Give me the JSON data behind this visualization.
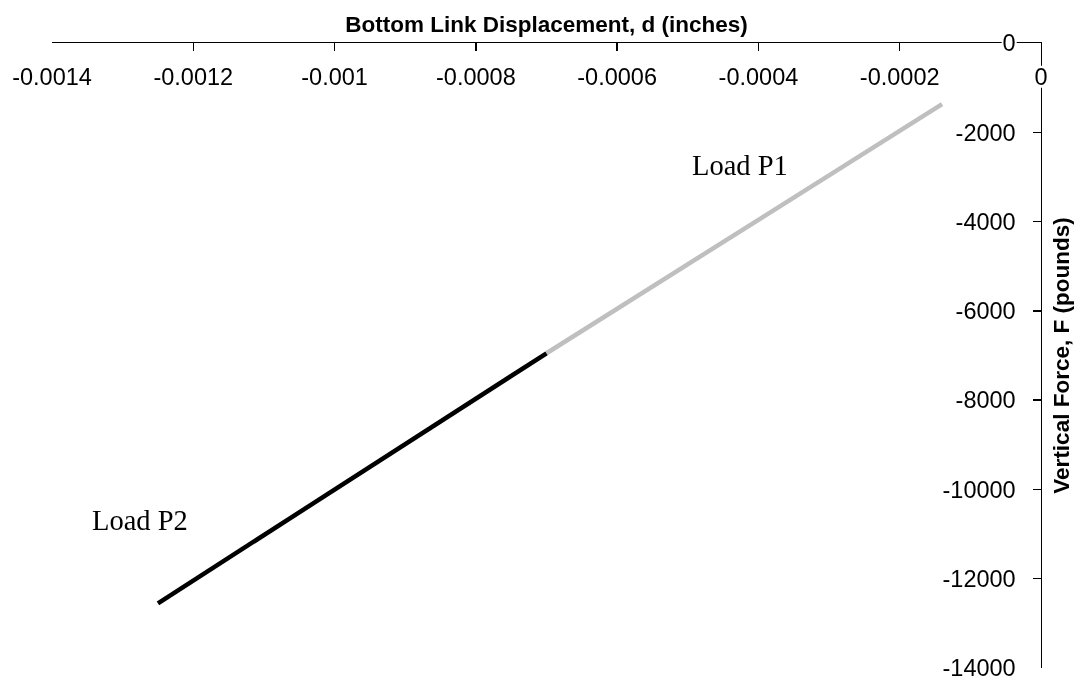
{
  "chart_data": {
    "type": "line",
    "xlabel": "Bottom Link Displacement, d (inches)",
    "ylabel": "Vertical Force, F (pounds)",
    "xlim": [
      -0.0014,
      0
    ],
    "xticks": [
      -0.0014,
      -0.0012,
      -0.001,
      -0.0008,
      -0.0006,
      -0.0004,
      -0.0002,
      0
    ],
    "ylim": [
      -14000,
      0
    ],
    "yticks": [
      0,
      -2000,
      -4000,
      -6000,
      -8000,
      -10000,
      -12000,
      -14000
    ],
    "grid": false,
    "series": [
      {
        "name": "Load P1",
        "color": "#bfbfbf",
        "x": [
          -0.00014,
          -0.0007
        ],
        "values": [
          -1370,
          -6950
        ]
      },
      {
        "name": "Load P2",
        "color": "#000000",
        "x": [
          -0.0007,
          -0.00125
        ],
        "values": [
          -6950,
          -12550
        ]
      }
    ]
  }
}
